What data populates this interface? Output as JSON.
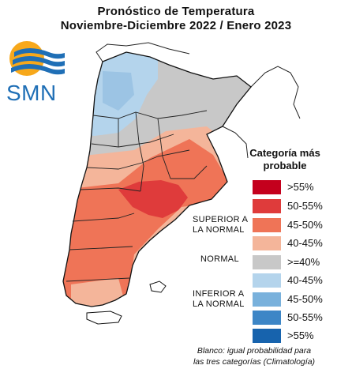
{
  "header": {
    "title_line1": "Pronóstico de Temperatura",
    "title_line2": "Noviembre-Diciembre 2022 / Enero 2023"
  },
  "logo": {
    "text": "SMN",
    "icon": "smn-sun-waves-icon",
    "color": "#1f6fb6",
    "sun_color": "#f7a81b"
  },
  "legend": {
    "title_line1": "Categoría más",
    "title_line2": "probable",
    "groups": {
      "superior": {
        "line1": "SUPERIOR A",
        "line2": "LA NORMAL"
      },
      "normal": {
        "line1": "NORMAL"
      },
      "inferior": {
        "line1": "INFERIOR A",
        "line2": "LA NORMAL"
      }
    },
    "categories": [
      {
        "label": ">55%",
        "color": "#c4001d"
      },
      {
        "label": "50-55%",
        "color": "#df3b3b"
      },
      {
        "label": "45-50%",
        "color": "#ef7457"
      },
      {
        "label": "40-45%",
        "color": "#f4b59a"
      },
      {
        "label": ">=40%",
        "color": "#c8c8c8"
      },
      {
        "label": "40-45%",
        "color": "#b4d4ec"
      },
      {
        "label": "45-50%",
        "color": "#79b1dc"
      },
      {
        "label": "50-55%",
        "color": "#3d86c6"
      },
      {
        "label": ">55%",
        "color": "#1763ad"
      }
    ]
  },
  "footnote": {
    "line1": "Blanco: igual probabilidad para",
    "line2": "las tres categorías (Climatología)"
  }
}
